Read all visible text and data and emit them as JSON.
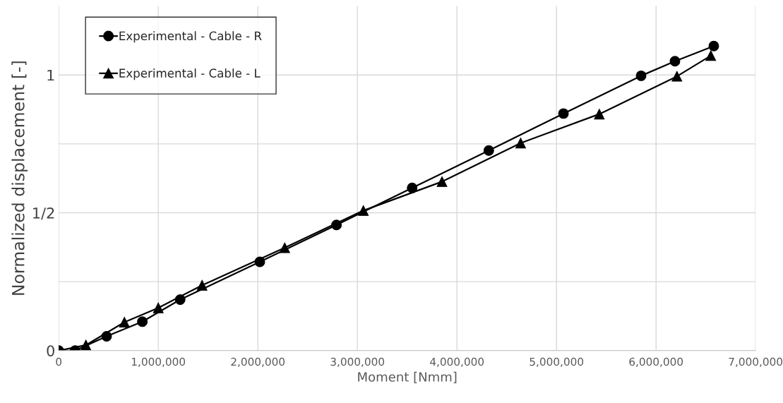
{
  "chart_data": {
    "type": "line",
    "xlabel": "Moment [Nmm]",
    "ylabel": "Normalized displacement [-]",
    "xlim": [
      0,
      7000000
    ],
    "ylim": [
      0,
      1.25
    ],
    "xticks": [
      0,
      {
        "value": 1000000,
        "label": "1,000,000"
      },
      {
        "value": 2000000,
        "label": "2,000,000"
      },
      {
        "value": 3000000,
        "label": "3,000,000"
      },
      {
        "value": 4000000,
        "label": "4,000,000"
      },
      {
        "value": 5000000,
        "label": "5,000,000"
      },
      {
        "value": 6000000,
        "label": "6,000,000"
      },
      {
        "value": 7000000,
        "label": "7,000,000"
      }
    ],
    "yticks": [
      0,
      {
        "value": 0.25,
        "label": null
      },
      {
        "value": 0.5,
        "label": "1/2"
      },
      {
        "value": 0.75,
        "label": null
      },
      1
    ],
    "grid": true,
    "legend": "top left",
    "series": [
      {
        "name": "Experimental - Cable - R",
        "color": "#000000",
        "marker": "circle",
        "x": [
          0,
          165000,
          481000,
          840000,
          1220000,
          2020000,
          2790000,
          3550000,
          4320000,
          5070000,
          5850000,
          6190000,
          6580000
        ],
        "values": [
          0,
          0,
          0.052,
          0.105,
          0.185,
          0.322,
          0.456,
          0.59,
          0.726,
          0.86,
          0.997,
          1.05,
          1.105
        ]
      },
      {
        "name": "Experimental - Cable - L",
        "color": "#000000",
        "marker": "triangle",
        "x": [
          0,
          273000,
          660000,
          1000000,
          1440000,
          2270000,
          3060000,
          3850000,
          4640000,
          5430000,
          6210000,
          6550000
        ],
        "values": [
          0,
          0.02,
          0.103,
          0.155,
          0.237,
          0.373,
          0.508,
          0.613,
          0.753,
          0.858,
          0.995,
          1.07
        ]
      }
    ]
  }
}
